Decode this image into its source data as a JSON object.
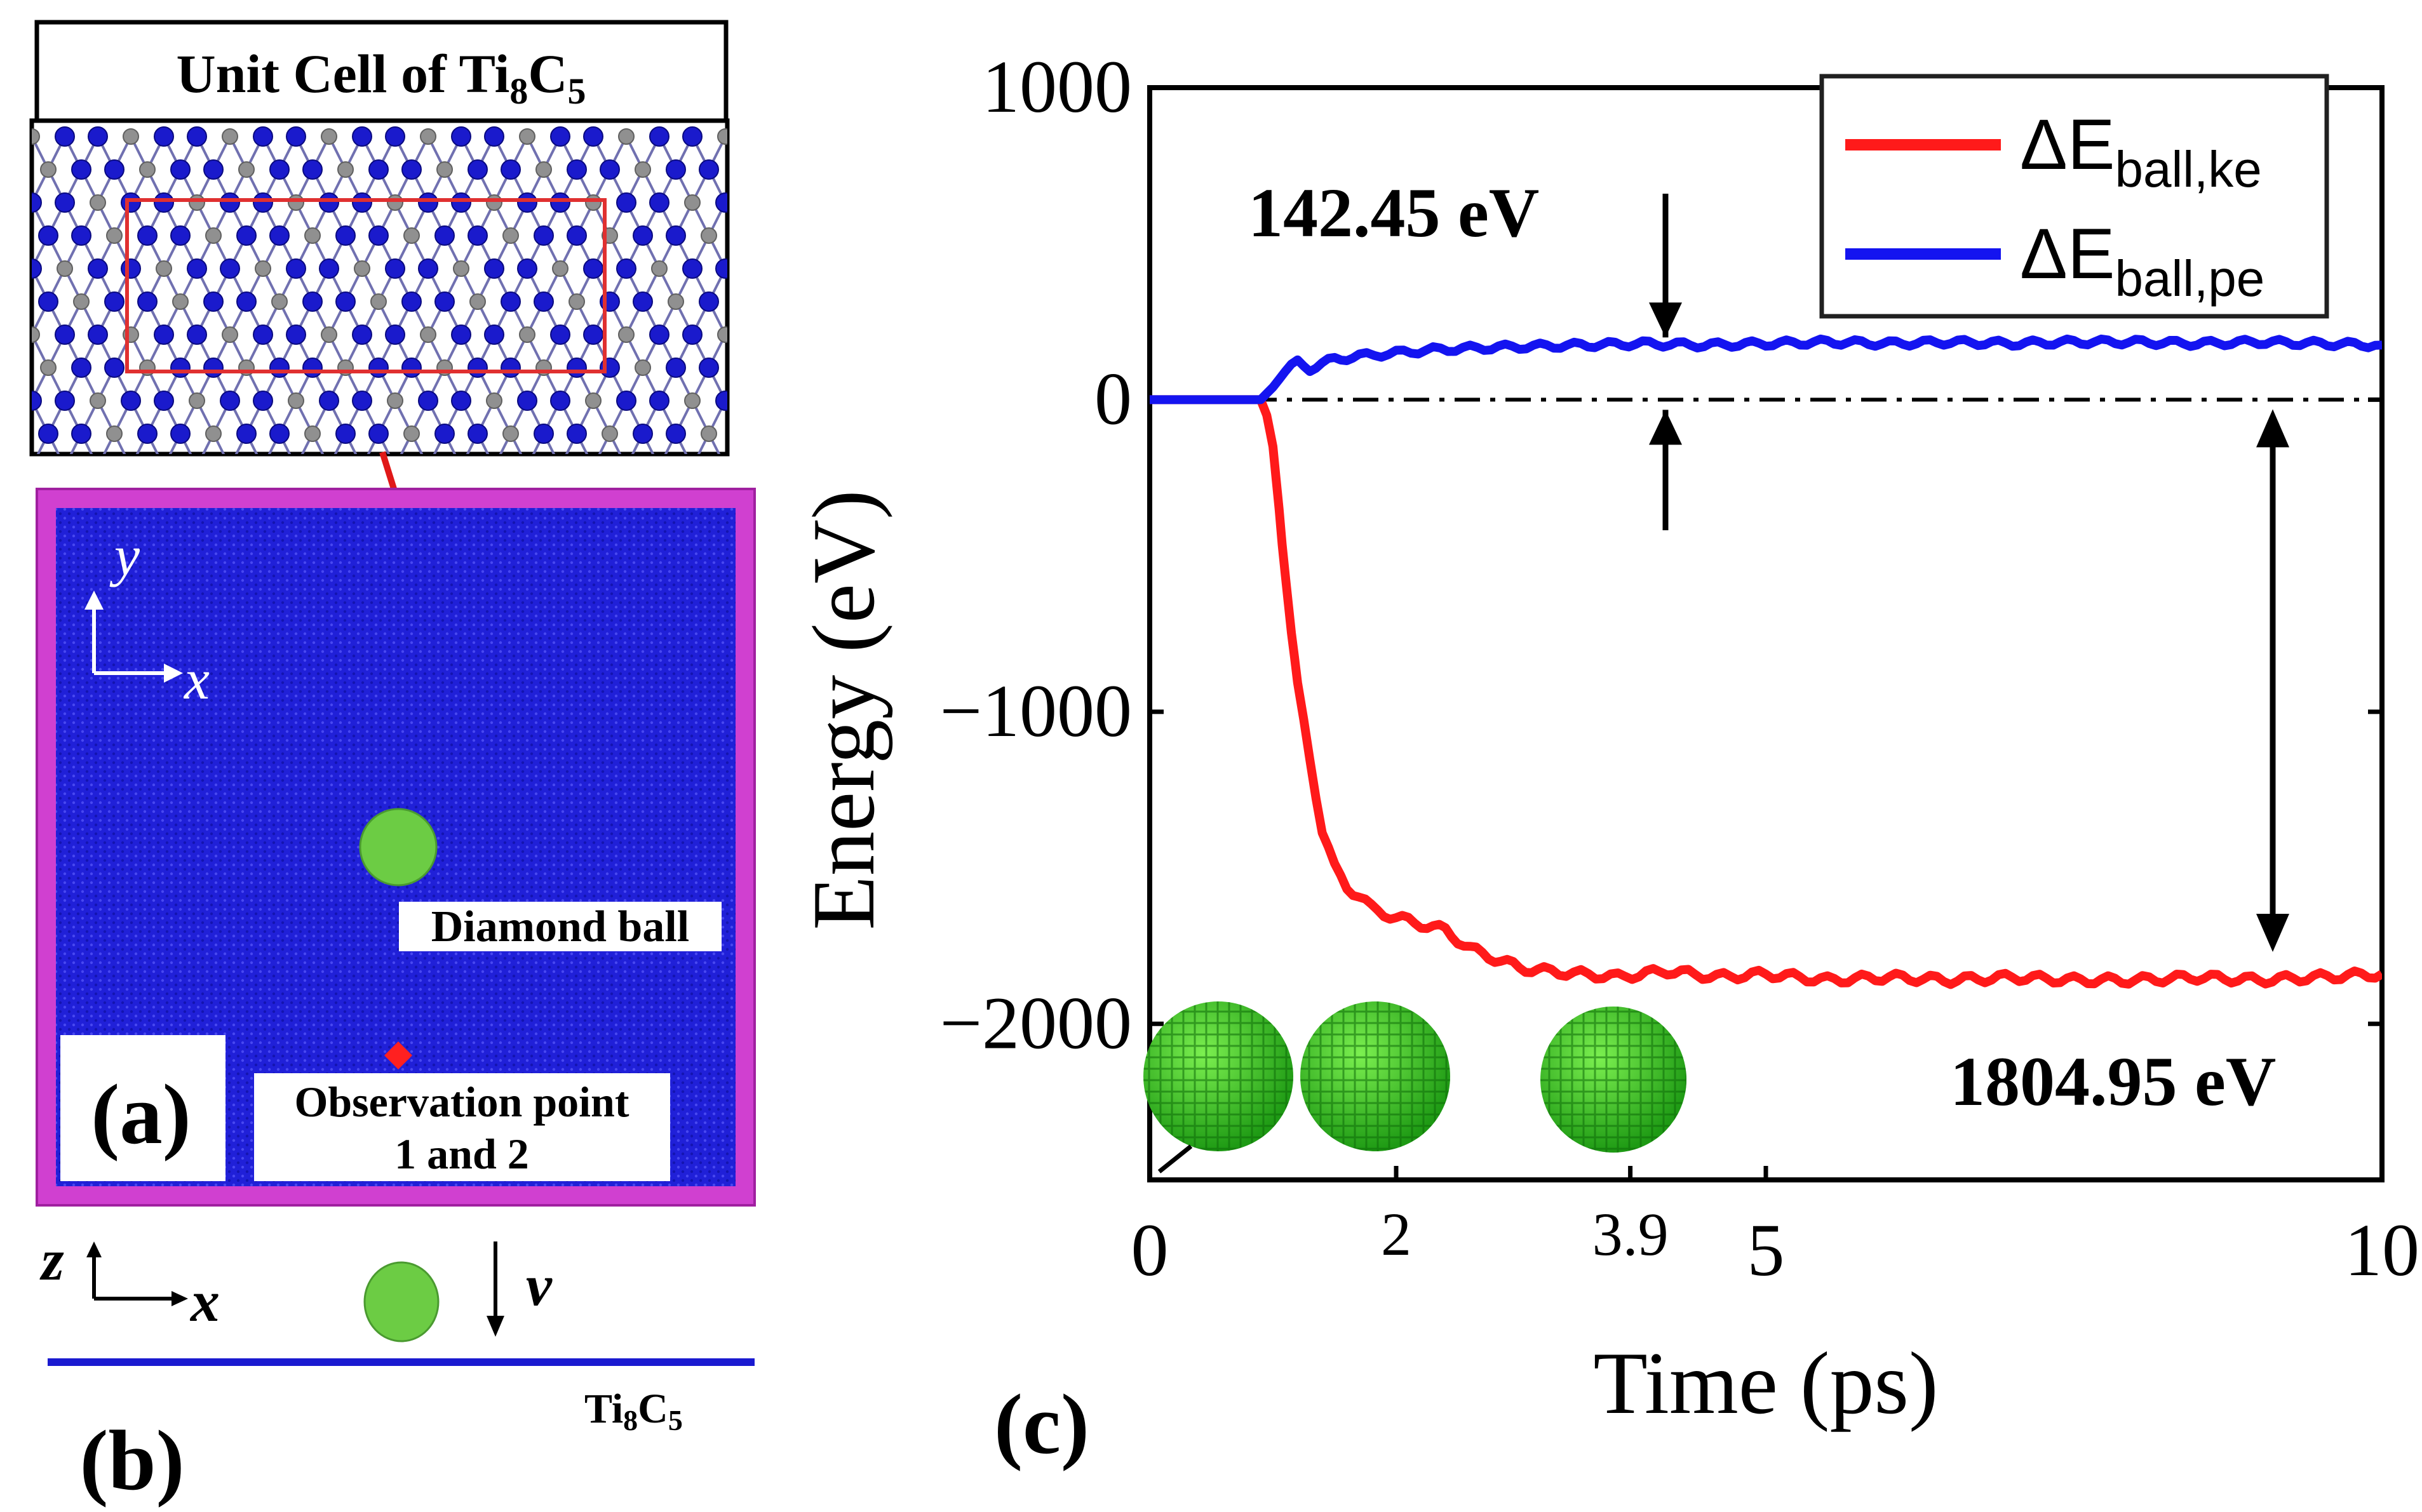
{
  "panel_a": {
    "unit_cell_title_prefix": "Unit Cell of Ti",
    "unit_cell_sub1": "8",
    "unit_cell_mid": "C",
    "unit_cell_sub2": "5",
    "axis_y": "y",
    "axis_x": "x",
    "ball_label": "Diamond ball",
    "obs_label_line1": "Observation point",
    "obs_label_line2": "1 and 2",
    "panel_label": "(a)",
    "colors": {
      "substrate": "#2020d8",
      "frame": "#d040d0",
      "ball": "#6ccc44",
      "carbon": "#909090",
      "titanium": "#1a1acc",
      "cell_box": "#e03030",
      "obs_point": "#ff2020"
    }
  },
  "panel_b": {
    "axis_z": "z",
    "axis_x": "x",
    "velocity": "v",
    "substrate_label_prefix": "Ti",
    "substrate_sub1": "8",
    "substrate_mid": "C",
    "substrate_sub2": "5",
    "panel_label": "(b)"
  },
  "panel_c": {
    "panel_label": "(c)",
    "annotation_top": "142.45 eV",
    "annotation_bottom": "1804.95 eV",
    "legend_delta": "ΔE",
    "legend_ke_sub": "ball,ke",
    "legend_pe_sub": "ball,pe",
    "colors": {
      "ke": "#ff1a1a",
      "pe": "#1414f0"
    }
  },
  "chart_data": {
    "type": "line",
    "title": "",
    "xlabel": "Time (ps)",
    "ylabel": "Energy (eV)",
    "xlim": [
      0,
      10
    ],
    "ylim": [
      -2500,
      1000
    ],
    "xticks": [
      0,
      2,
      3.9,
      5,
      10
    ],
    "xtick_labels": [
      "0",
      "2",
      "3.9",
      "5",
      "10"
    ],
    "yticks": [
      1000,
      0,
      -1000,
      -2000
    ],
    "ytick_labels": [
      "1000",
      "0",
      "−1000",
      "−2000"
    ],
    "reference_line": 0,
    "series": [
      {
        "name": "ΔE_ball,ke",
        "x": [
          0,
          0.5,
          0.9,
          0.95,
          1.0,
          1.05,
          1.1,
          1.15,
          1.2,
          1.3,
          1.4,
          1.5,
          1.6,
          1.7,
          1.8,
          2.0,
          2.2,
          2.4,
          2.6,
          2.8,
          3.0,
          3.2,
          3.5,
          3.8,
          4.2,
          4.6,
          5.0,
          5.5,
          6.0,
          6.5,
          7.0,
          7.5,
          8.0,
          8.5,
          9.0,
          9.5,
          10.0
        ],
        "y": [
          0,
          0,
          0,
          -50,
          -150,
          -350,
          -550,
          -750,
          -920,
          -1150,
          -1380,
          -1500,
          -1560,
          -1590,
          -1630,
          -1660,
          -1680,
          -1700,
          -1760,
          -1790,
          -1820,
          -1830,
          -1840,
          -1850,
          -1830,
          -1850,
          -1840,
          -1860,
          -1850,
          -1860,
          -1850,
          -1860,
          -1860,
          -1850,
          -1860,
          -1850,
          -1840
        ]
      },
      {
        "name": "ΔE_ball,pe",
        "x": [
          0,
          0.5,
          0.9,
          1.0,
          1.1,
          1.2,
          1.3,
          1.5,
          1.7,
          2.0,
          2.3,
          2.6,
          3.0,
          3.5,
          4.0,
          4.5,
          5.0,
          5.5,
          6.0,
          6.5,
          7.0,
          7.5,
          8.0,
          8.5,
          9.0,
          9.5,
          10.0
        ],
        "y": [
          0,
          0,
          0,
          40,
          90,
          120,
          100,
          130,
          140,
          150,
          160,
          165,
          170,
          175,
          180,
          175,
          180,
          185,
          180,
          185,
          180,
          185,
          185,
          180,
          185,
          180,
          175
        ]
      }
    ],
    "legend": [
      "ΔE_ball,ke",
      "ΔE_ball,pe"
    ],
    "legend_position": "top-right",
    "annotations": [
      "142.45 eV",
      "1804.95 eV"
    ]
  }
}
